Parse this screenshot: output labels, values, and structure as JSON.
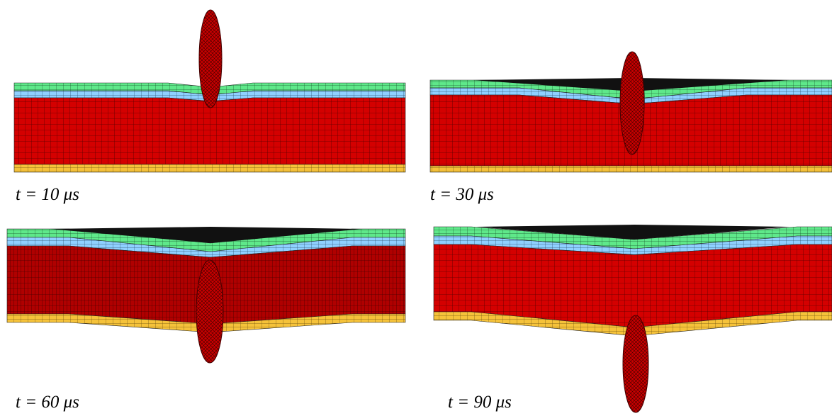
{
  "panels": [
    {
      "caption": "t = 10 μs"
    },
    {
      "caption": "t = 30 μs"
    },
    {
      "caption": "t = 60 μs"
    },
    {
      "caption": "t = 90 μs"
    }
  ]
}
